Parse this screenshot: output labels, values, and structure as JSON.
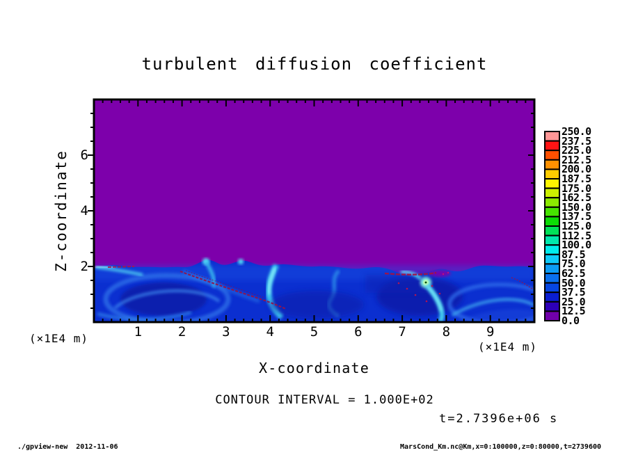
{
  "title": "turbulent diffusion coefficient",
  "axes": {
    "x_label": "X-coordinate",
    "z_label": "Z-coordinate",
    "x_unit_left": "(×1E4 m)",
    "x_unit_right": "(×1E4 m)",
    "x_tick_labels": [
      "1",
      "2",
      "3",
      "4",
      "5",
      "6",
      "7",
      "8",
      "9"
    ],
    "z_tick_labels": [
      "6",
      "4",
      "2"
    ]
  },
  "annotations": {
    "contour_interval": "CONTOUR INTERVAL = 1.000E+02",
    "time": "t=2.7396e+06 s"
  },
  "footer": {
    "left": "./gpview-new  2012-11-06",
    "right": "MarsCond_Km.nc@Km,x=0:100000,z=0:80000,t=2739600"
  },
  "colorbar": {
    "labels": [
      "250.0",
      "237.5",
      "225.0",
      "212.5",
      "200.0",
      "187.5",
      "175.0",
      "162.5",
      "150.0",
      "137.5",
      "125.0",
      "112.5",
      "100.0",
      "87.5",
      "75.0",
      "62.5",
      "50.0",
      "37.5",
      "25.0",
      "12.5",
      "0.0"
    ]
  },
  "chart_data": {
    "type": "heatmap",
    "title": "turbulent diffusion coefficient",
    "xlabel": "X-coordinate",
    "ylabel": "Z-coordinate",
    "x_unit": "×1E4 m",
    "z_unit": "×1E4 m",
    "x_range_m": [
      0,
      100000
    ],
    "z_range_m": [
      0,
      80000
    ],
    "x_tick_values_1e4m": [
      1,
      2,
      3,
      4,
      5,
      6,
      7,
      8,
      9
    ],
    "z_tick_values_1e4m": [
      6,
      4,
      2
    ],
    "x_major_tick_m": 10000,
    "x_minor_tick_m": 2000,
    "z_major_tick_m": 20000,
    "z_minor_tick_m": 5000,
    "time_seconds": 2739600,
    "contour_interval": 100.0,
    "levels": [
      0.0,
      12.5,
      25.0,
      37.5,
      50.0,
      62.5,
      75.0,
      87.5,
      100.0,
      112.5,
      125.0,
      137.5,
      150.0,
      162.5,
      175.0,
      187.5,
      200.0,
      212.5,
      225.0,
      237.5,
      250.0
    ],
    "palette_ascending": [
      "#7000aa",
      "#2d00b8",
      "#0a1ed2",
      "#0646e2",
      "#0a70ee",
      "#0c9cf6",
      "#0ecafa",
      "#00ecec",
      "#00e8ac",
      "#00e258",
      "#0cdc06",
      "#46e400",
      "#8cea00",
      "#ccf000",
      "#fff600",
      "#ffcc00",
      "#ff9100",
      "#ff5000",
      "#ff1414",
      "#ff9696"
    ],
    "background_value_color": "#7d00ab",
    "mixed_layer_top_m_approx": 20500,
    "field_summary": "Km ≈ 0 (purple, lowest bin) everywhere above z ≈ 2×1E4 m; below that a turbulent boundary layer with Km mostly 12.5–100 (blue to cyan swirls and plumes), thin filaments of higher values (dark red streaks) along eddy interfaces; bright cyan/green plume cores near x ≈ 4×1E4 and 6.3×1E4 m"
  }
}
